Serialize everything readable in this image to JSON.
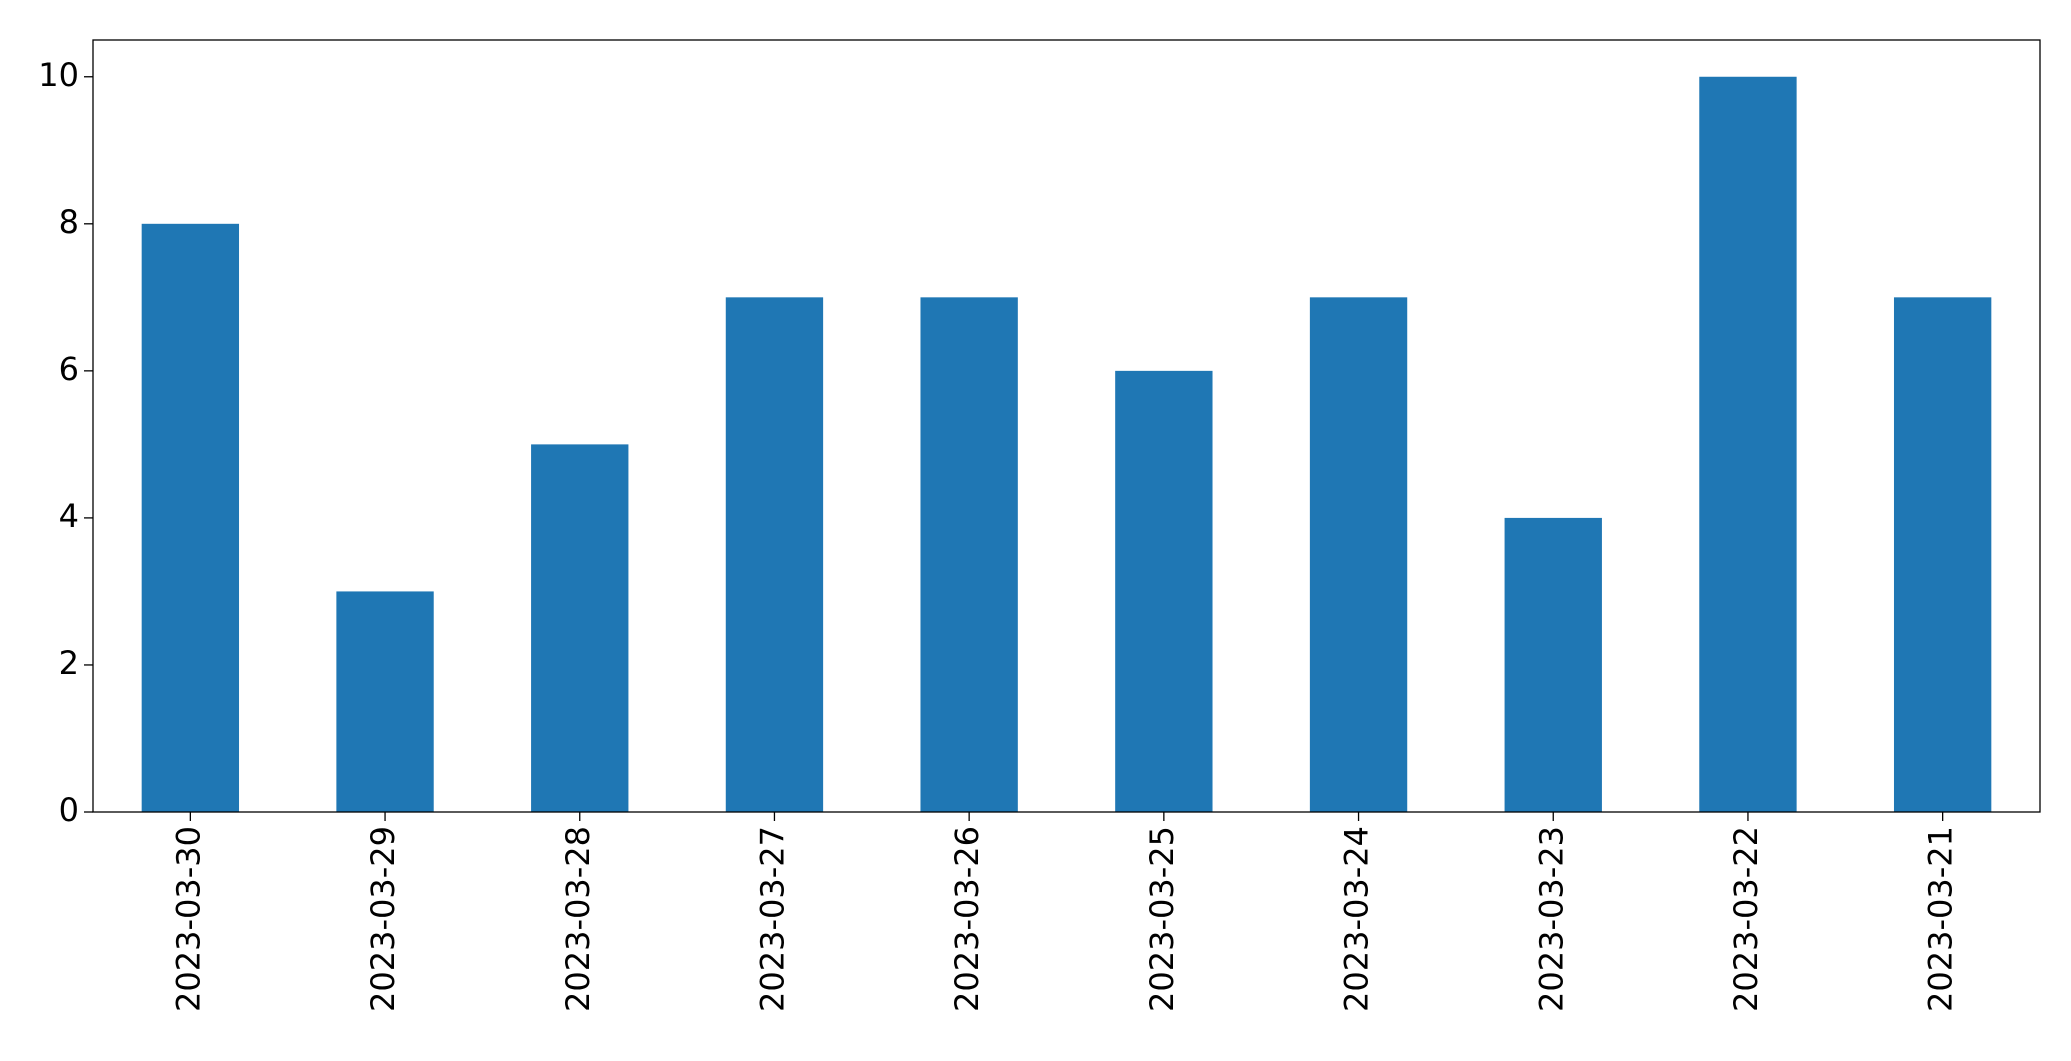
{
  "chart_data": {
    "type": "bar",
    "categories": [
      "2023-03-30",
      "2023-03-29",
      "2023-03-28",
      "2023-03-27",
      "2023-03-26",
      "2023-03-25",
      "2023-03-24",
      "2023-03-23",
      "2023-03-22",
      "2023-03-21"
    ],
    "values": [
      8,
      3,
      5,
      7,
      7,
      6,
      7,
      4,
      10,
      7
    ],
    "color": "#1f77b4",
    "ylim": [
      0,
      10.5
    ],
    "yticks": [
      0,
      2,
      4,
      6,
      8,
      10
    ],
    "grid": false
  }
}
